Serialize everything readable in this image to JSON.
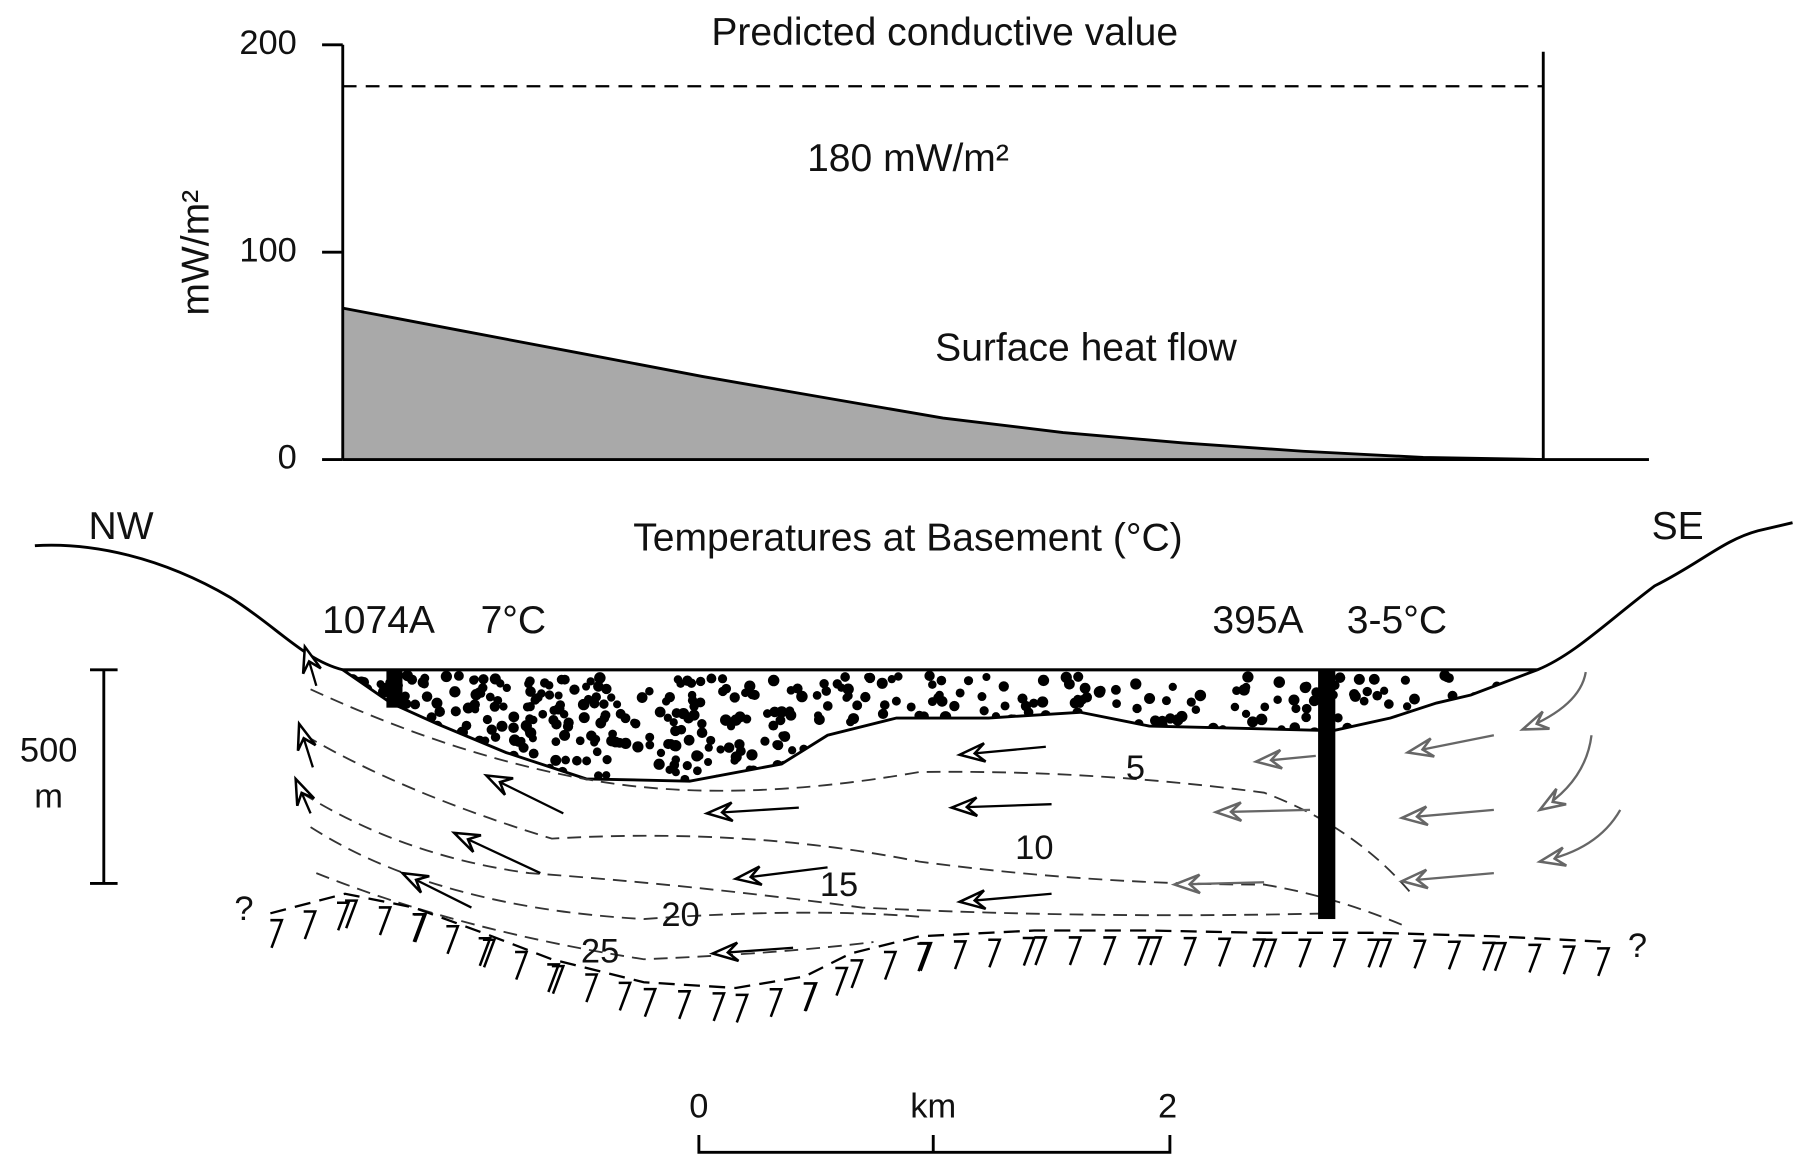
{
  "chart_data": {
    "type": "area",
    "title": "Predicted conductive value",
    "y_label": "mW/m²",
    "annotation": "Surface heat flow",
    "reference_line": {
      "value": 180,
      "label": "180 mW/m²"
    },
    "values": [
      73,
      62,
      51,
      40,
      30,
      20,
      13,
      8,
      4,
      1,
      0
    ],
    "color": "#a9a9a9",
    "ylim": [
      0,
      200
    ],
    "yticks": [
      0,
      100,
      200
    ]
  },
  "cross_section": {
    "title": "Temperatures at Basement (°C)",
    "left_label": "NW",
    "right_label": "SE",
    "wells": [
      {
        "name": "1074A",
        "temperature": "7°C"
      },
      {
        "name": "395A",
        "temperature": "3-5°C"
      }
    ],
    "isotherm_labels": [
      5,
      10,
      15,
      20,
      25
    ],
    "uncertain_marks": [
      "?",
      "?"
    ],
    "depth_scale": {
      "value": 500,
      "unit": "m"
    },
    "distance_scale": {
      "start": 0,
      "unit": "km",
      "end": 2
    }
  }
}
